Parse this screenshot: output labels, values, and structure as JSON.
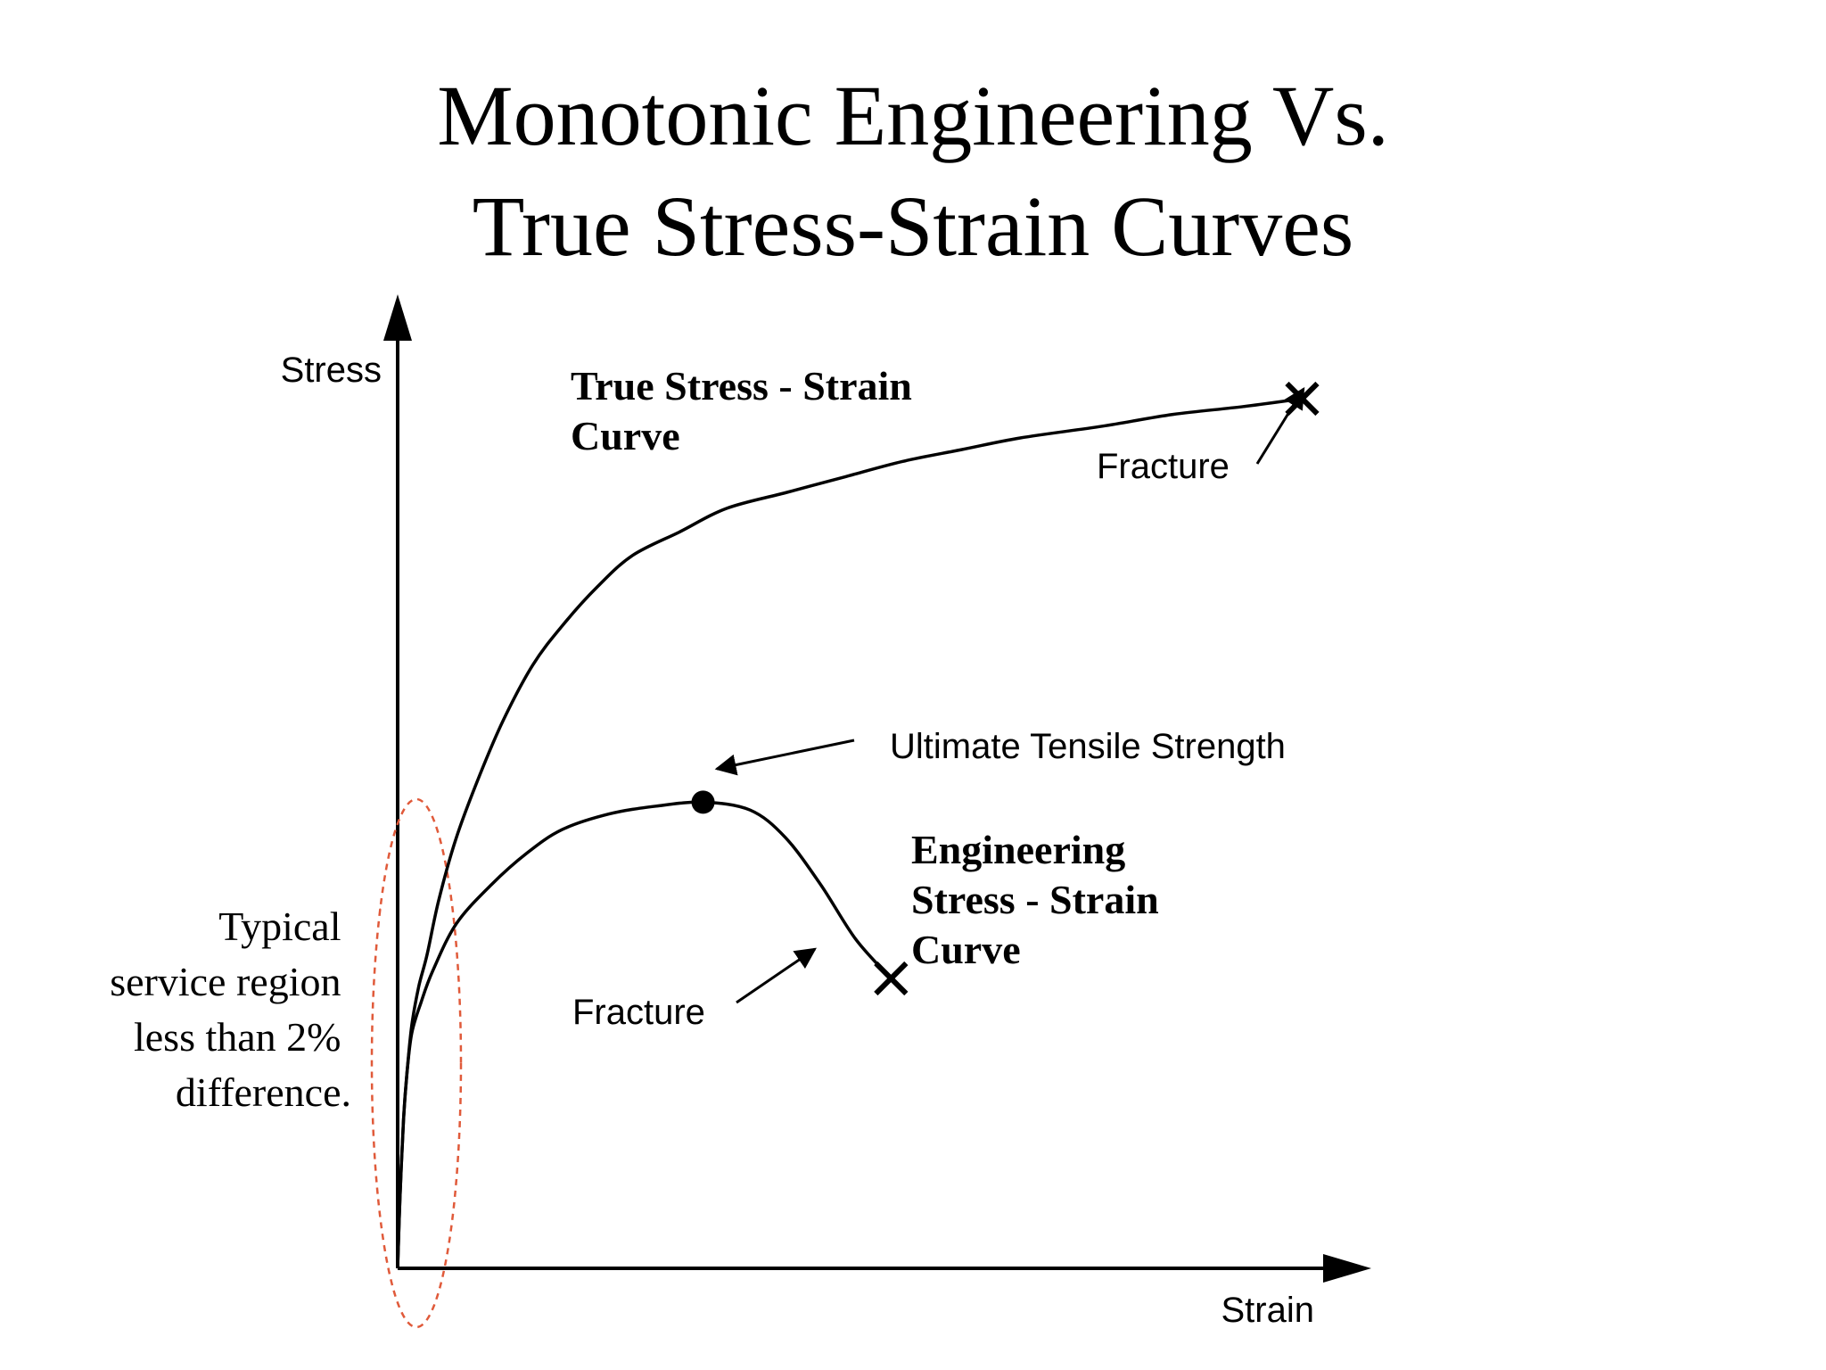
{
  "chart_data": {
    "type": "line",
    "title_line1": "Monotonic Engineering Vs.",
    "title_line2": "True Stress-Strain Curves",
    "xlabel": "Strain",
    "ylabel": "Stress",
    "series": [
      {
        "name": "True Stress - Strain Curve",
        "label_line1": "True Stress - Strain",
        "label_line2": "Curve",
        "points": [
          [
            0,
            0
          ],
          [
            0.2,
            9
          ],
          [
            0.5,
            19
          ],
          [
            0.8,
            25
          ],
          [
            1.2,
            31
          ],
          [
            1.8,
            36
          ],
          [
            2.5,
            40
          ],
          [
            3.5,
            47
          ],
          [
            5,
            55
          ],
          [
            7,
            63
          ],
          [
            9,
            70
          ],
          [
            11.5,
            77
          ],
          [
            14,
            82
          ],
          [
            17,
            87
          ],
          [
            20,
            91
          ],
          [
            24,
            94
          ],
          [
            28,
            97
          ],
          [
            33,
            99
          ],
          [
            38,
            101
          ],
          [
            43,
            103
          ],
          [
            48,
            104.5
          ],
          [
            53,
            106
          ],
          [
            60,
            107.5
          ],
          [
            66,
            109
          ],
          [
            72,
            110
          ],
          [
            77,
            111
          ]
        ]
      },
      {
        "name": "Engineering Stress - Strain Curve",
        "label_line1": "Engineering",
        "label_line2": "Stress - Strain",
        "label_line3": "Curve",
        "points": [
          [
            0,
            0
          ],
          [
            0.2,
            9
          ],
          [
            0.5,
            19
          ],
          [
            0.8,
            25
          ],
          [
            1.2,
            30
          ],
          [
            2,
            34
          ],
          [
            3,
            38
          ],
          [
            5,
            44
          ],
          [
            8,
            49
          ],
          [
            11,
            53
          ],
          [
            14,
            56
          ],
          [
            18,
            58
          ],
          [
            22,
            59
          ],
          [
            26,
            59.5
          ],
          [
            30,
            58.5
          ],
          [
            33,
            55
          ],
          [
            36,
            49
          ],
          [
            39,
            42
          ],
          [
            42,
            37
          ]
        ]
      }
    ],
    "annotations": {
      "uts_label": "Ultimate Tensile Strength",
      "fracture_true_label": "Fracture",
      "fracture_eng_label": "Fracture",
      "service_region_lines": [
        "Typical",
        "service region",
        "less than 2%",
        "difference."
      ]
    },
    "uts_point": [
      26,
      59.5
    ],
    "fracture_true_point": [
      77,
      111
    ],
    "fracture_eng_point": [
      42,
      37
    ],
    "xlim": [
      0,
      80
    ],
    "ylim": [
      0,
      120
    ],
    "grid": false,
    "colors": {
      "curves": "#000000",
      "service_region": "#e05a3a"
    }
  }
}
